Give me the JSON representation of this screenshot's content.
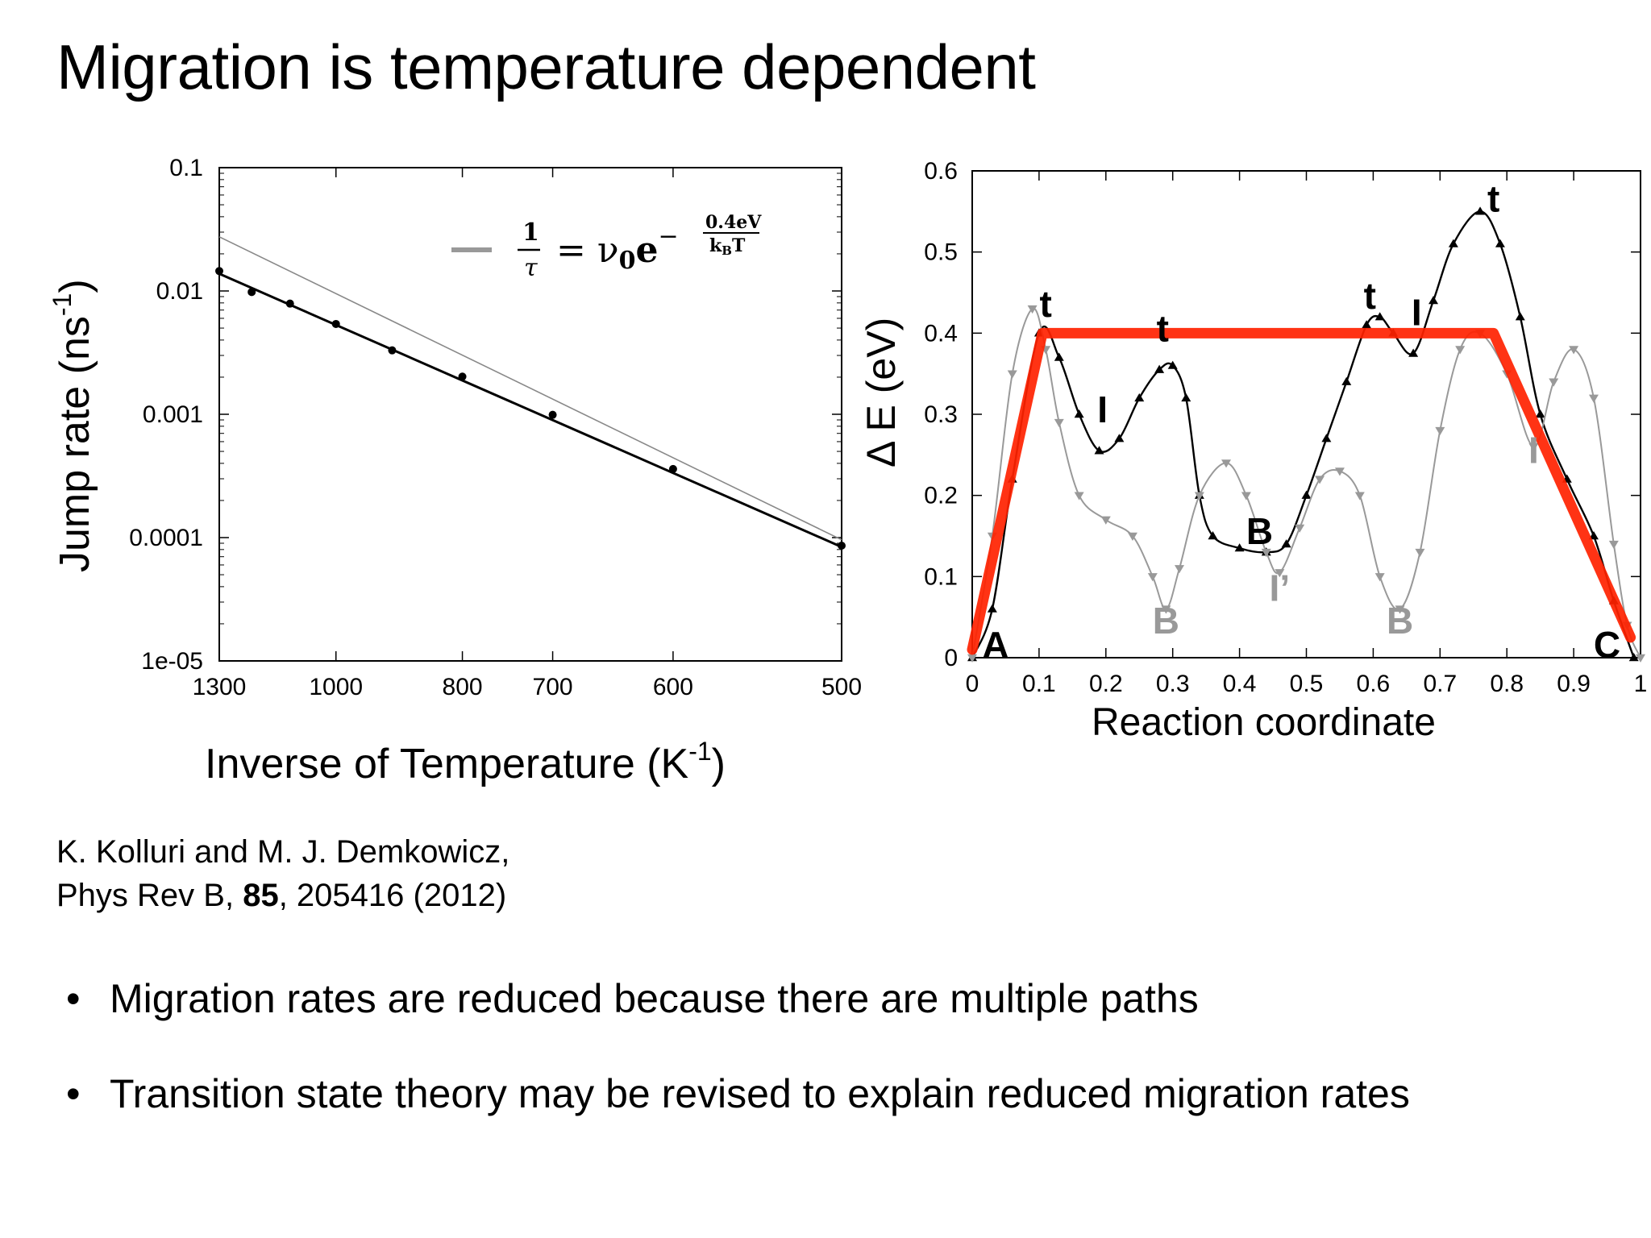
{
  "slide": {
    "title": "Migration is temperature dependent",
    "citation": {
      "line1": "K. Kolluri and M. J. Demkowicz,",
      "line2_prefix": "Phys Rev B, ",
      "line2_bold": "85",
      "line2_suffix": ", 205416 (2012)"
    },
    "bullets": [
      "Migration rates are reduced because there are multiple paths",
      "Transition state theory may be revised to explain reduced migration rates"
    ]
  },
  "chart_data": [
    {
      "type": "scatter",
      "title": "",
      "xlabel": "Inverse of Temperature (K-1)",
      "ylabel": "Jump rate (ns-1)",
      "x_scale": "reciprocal",
      "y_scale": "log",
      "xlim": [
        1300,
        500
      ],
      "ylim": [
        1e-05,
        0.1
      ],
      "x_ticks": [
        1300,
        1000,
        800,
        700,
        600,
        500
      ],
      "y_ticks": [
        {
          "value": 0.1,
          "label": "0.1"
        },
        {
          "value": 0.01,
          "label": "0.01"
        },
        {
          "value": 0.001,
          "label": "0.001"
        },
        {
          "value": 0.0001,
          "label": "0.0001"
        },
        {
          "value": 1e-05,
          "label": "1e-05"
        }
      ],
      "legend": {
        "position": "top-right",
        "formula": "1/τ = ν0 e^(−0.4eV/kBT)"
      },
      "series": [
        {
          "kind": "points",
          "color": "#000000",
          "x": [
            1300,
            1200,
            1100,
            1000,
            900,
            800,
            700,
            600,
            500
          ],
          "y": [
            0.0145,
            0.0098,
            0.0079,
            0.0054,
            0.0033,
            0.00202,
            0.00099,
            0.00036,
            8.6e-05
          ]
        },
        {
          "kind": "fit",
          "color": "#000000",
          "x": [
            1300,
            500
          ],
          "y": [
            0.0138,
            8.4e-05
          ]
        },
        {
          "kind": "formula",
          "color": "#888888",
          "x": [
            1300,
            500
          ],
          "y": [
            0.0275,
            9.6e-05
          ]
        }
      ]
    },
    {
      "type": "line",
      "title": "",
      "xlabel": "Reaction coordinate",
      "ylabel": "Δ E (eV)",
      "xlim": [
        0,
        1
      ],
      "ylim": [
        0,
        0.6
      ],
      "x_ticks": [
        0,
        0.1,
        0.2,
        0.3,
        0.4,
        0.5,
        0.6,
        0.7,
        0.8,
        0.9,
        1
      ],
      "y_ticks": [
        0,
        0.1,
        0.2,
        0.3,
        0.4,
        0.5,
        0.6
      ],
      "series": [
        {
          "kind": "path-black",
          "color": "#000000",
          "x": [
            0,
            0.03,
            0.06,
            0.1,
            0.13,
            0.16,
            0.19,
            0.22,
            0.25,
            0.28,
            0.3,
            0.32,
            0.34,
            0.36,
            0.4,
            0.44,
            0.47,
            0.5,
            0.53,
            0.56,
            0.59,
            0.61,
            0.63,
            0.66,
            0.69,
            0.72,
            0.76,
            0.79,
            0.82,
            0.85,
            0.89,
            0.93,
            0.96,
            0.99
          ],
          "y": [
            0,
            0.06,
            0.22,
            0.4,
            0.37,
            0.3,
            0.255,
            0.27,
            0.32,
            0.355,
            0.36,
            0.32,
            0.2,
            0.15,
            0.135,
            0.13,
            0.14,
            0.2,
            0.27,
            0.34,
            0.41,
            0.42,
            0.4,
            0.375,
            0.44,
            0.51,
            0.55,
            0.51,
            0.42,
            0.3,
            0.22,
            0.15,
            0.07,
            0
          ]
        },
        {
          "kind": "path-gray",
          "color": "#999999",
          "x": [
            0,
            0.03,
            0.06,
            0.09,
            0.11,
            0.13,
            0.16,
            0.2,
            0.24,
            0.27,
            0.29,
            0.31,
            0.34,
            0.38,
            0.41,
            0.44,
            0.46,
            0.49,
            0.52,
            0.55,
            0.58,
            0.61,
            0.64,
            0.67,
            0.7,
            0.73,
            0.76,
            0.8,
            0.84,
            0.87,
            0.9,
            0.93,
            0.96,
            0.98,
            1
          ],
          "y": [
            0,
            0.15,
            0.35,
            0.43,
            0.38,
            0.29,
            0.2,
            0.17,
            0.15,
            0.1,
            0.06,
            0.11,
            0.2,
            0.24,
            0.2,
            0.13,
            0.105,
            0.16,
            0.22,
            0.23,
            0.2,
            0.1,
            0.06,
            0.13,
            0.28,
            0.38,
            0.4,
            0.35,
            0.26,
            0.34,
            0.38,
            0.32,
            0.14,
            0.04,
            0
          ]
        },
        {
          "kind": "fit-red",
          "color": "#ff2200",
          "x": [
            0,
            0.105,
            0.78,
            0.985
          ],
          "y": [
            0.01,
            0.4,
            0.4,
            0.025
          ]
        }
      ],
      "annotations": [
        {
          "text": "t",
          "x": 0.11,
          "y": 0.42,
          "color": "#000000"
        },
        {
          "text": "t",
          "x": 0.285,
          "y": 0.39,
          "color": "#000000"
        },
        {
          "text": "I",
          "x": 0.195,
          "y": 0.29,
          "color": "#000000"
        },
        {
          "text": "t",
          "x": 0.595,
          "y": 0.43,
          "color": "#000000"
        },
        {
          "text": "I",
          "x": 0.665,
          "y": 0.41,
          "color": "#000000"
        },
        {
          "text": "t",
          "x": 0.78,
          "y": 0.55,
          "color": "#000000"
        },
        {
          "text": "B",
          "x": 0.43,
          "y": 0.14,
          "color": "#000000"
        },
        {
          "text": "A",
          "x": 0.035,
          "y": 0.0,
          "color": "#000000"
        },
        {
          "text": "C",
          "x": 0.95,
          "y": 0.0,
          "color": "#000000"
        },
        {
          "text": "B",
          "x": 0.29,
          "y": 0.03,
          "color": "#999999"
        },
        {
          "text": "I’",
          "x": 0.46,
          "y": 0.07,
          "color": "#999999"
        },
        {
          "text": "B",
          "x": 0.64,
          "y": 0.03,
          "color": "#999999"
        },
        {
          "text": "I",
          "x": 0.84,
          "y": 0.24,
          "color": "#999999"
        }
      ]
    }
  ]
}
